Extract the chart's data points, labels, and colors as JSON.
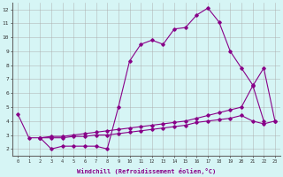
{
  "xlabel": "Windchill (Refroidissement éolien,°C)",
  "background_color": "#d6f5f5",
  "grid_color": "#aaaaaa",
  "line_color": "#880088",
  "xlim": [
    -0.5,
    23.5
  ],
  "ylim": [
    1.5,
    12.5
  ],
  "yticks": [
    2,
    3,
    4,
    5,
    6,
    7,
    8,
    9,
    10,
    11,
    12
  ],
  "xticks": [
    0,
    1,
    2,
    3,
    4,
    5,
    6,
    7,
    8,
    9,
    10,
    11,
    12,
    13,
    14,
    15,
    16,
    17,
    18,
    19,
    20,
    21,
    22,
    23
  ],
  "series": [
    {
      "x": [
        0,
        1,
        2,
        3,
        4,
        5,
        6,
        7,
        8,
        9,
        10,
        11,
        12,
        13,
        14,
        15,
        16,
        17,
        18,
        19,
        20,
        21,
        22
      ],
      "y": [
        4.5,
        2.8,
        2.8,
        2.0,
        2.2,
        2.2,
        2.2,
        2.2,
        2.0,
        5.0,
        8.3,
        9.5,
        9.8,
        9.5,
        10.6,
        10.7,
        11.6,
        12.1,
        11.1,
        9.0,
        7.8,
        6.6,
        4.0
      ]
    },
    {
      "x": [
        2,
        3,
        4,
        5,
        6,
        7,
        8,
        9,
        10,
        11,
        12,
        13,
        14,
        15,
        16,
        17,
        18,
        19,
        20,
        21,
        22,
        23
      ],
      "y": [
        2.8,
        2.9,
        2.9,
        3.0,
        3.1,
        3.2,
        3.3,
        3.4,
        3.5,
        3.6,
        3.7,
        3.8,
        3.9,
        4.0,
        4.2,
        4.4,
        4.6,
        4.8,
        5.0,
        6.5,
        7.8,
        4.0
      ]
    },
    {
      "x": [
        2,
        3,
        4,
        5,
        6,
        7,
        8,
        9,
        10,
        11,
        12,
        13,
        14,
        15,
        16,
        17,
        18,
        19,
        20,
        21,
        22,
        23
      ],
      "y": [
        2.8,
        2.8,
        2.8,
        2.9,
        2.9,
        3.0,
        3.0,
        3.1,
        3.2,
        3.3,
        3.4,
        3.5,
        3.6,
        3.7,
        3.9,
        4.0,
        4.1,
        4.2,
        4.4,
        4.0,
        3.8,
        4.0
      ]
    }
  ]
}
